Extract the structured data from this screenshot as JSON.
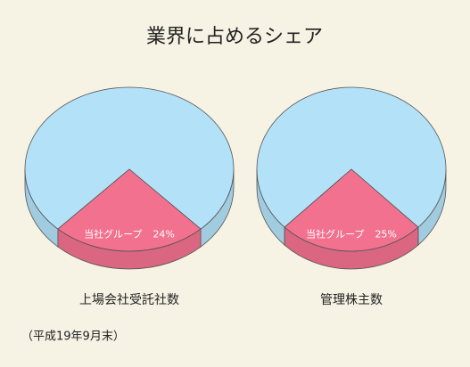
{
  "title": "業界に占めるシェア",
  "note": "（平成19年9月末）",
  "chart_data": [
    {
      "type": "pie",
      "title": "上場会社受託社数",
      "categories": [
        "当社グループ",
        null
      ],
      "values": [
        24,
        76
      ],
      "value_labels": [
        "24%",
        null
      ],
      "colors": [
        "#f2718f",
        "#b3e2f8"
      ]
    },
    {
      "type": "pie",
      "title": "管理株主数",
      "categories": [
        "当社グループ",
        null
      ],
      "values": [
        25,
        75
      ],
      "value_labels": [
        "25%",
        null
      ],
      "colors": [
        "#f2718f",
        "#b3e2f8"
      ]
    }
  ]
}
